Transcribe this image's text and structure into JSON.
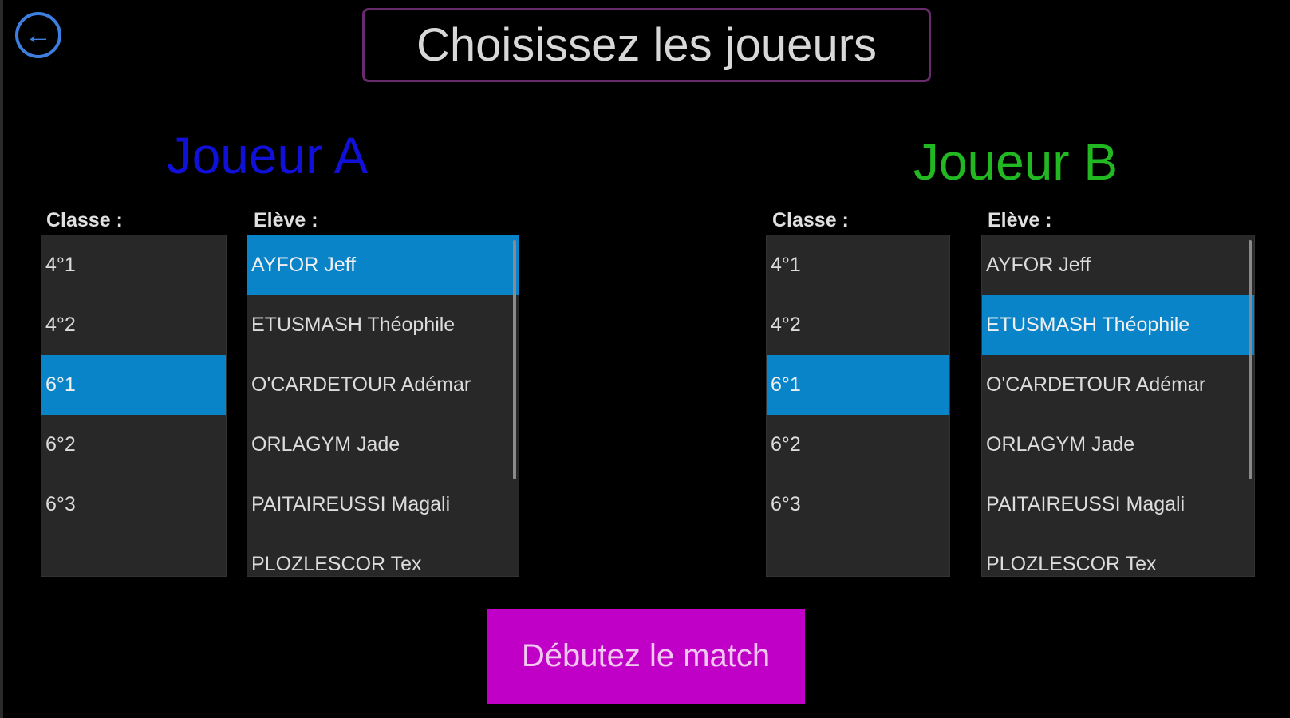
{
  "header": {
    "back_icon": "arrow-left-circle-icon",
    "title": "Choisissez les joueurs"
  },
  "colors": {
    "accent_back": "#3d7fe0",
    "player_a": "#1010d8",
    "player_b": "#22b822",
    "selection": "#0a84c8",
    "start_button": "#c000c6"
  },
  "player_a": {
    "title": "Joueur A",
    "classe_label": "Classe :",
    "eleve_label": "Elève :",
    "classes": [
      "4°1",
      "4°2",
      "6°1",
      "6°2",
      "6°3"
    ],
    "selected_class": "6°1",
    "eleves": [
      "AYFOR Jeff",
      "ETUSMASH Théophile",
      "O'CARDETOUR Adémar",
      "ORLAGYM Jade",
      "PAITAIREUSSI Magali",
      "PLOZLESCOR Tex"
    ],
    "selected_eleve": "AYFOR Jeff"
  },
  "player_b": {
    "title": "Joueur B",
    "classe_label": "Classe :",
    "eleve_label": "Elève :",
    "classes": [
      "4°1",
      "4°2",
      "6°1",
      "6°2",
      "6°3"
    ],
    "selected_class": "6°1",
    "eleves": [
      "AYFOR Jeff",
      "ETUSMASH Théophile",
      "O'CARDETOUR Adémar",
      "ORLAGYM Jade",
      "PAITAIREUSSI Magali",
      "PLOZLESCOR Tex"
    ],
    "selected_eleve": "ETUSMASH Théophile"
  },
  "start_button": {
    "label": "Débutez le match"
  }
}
